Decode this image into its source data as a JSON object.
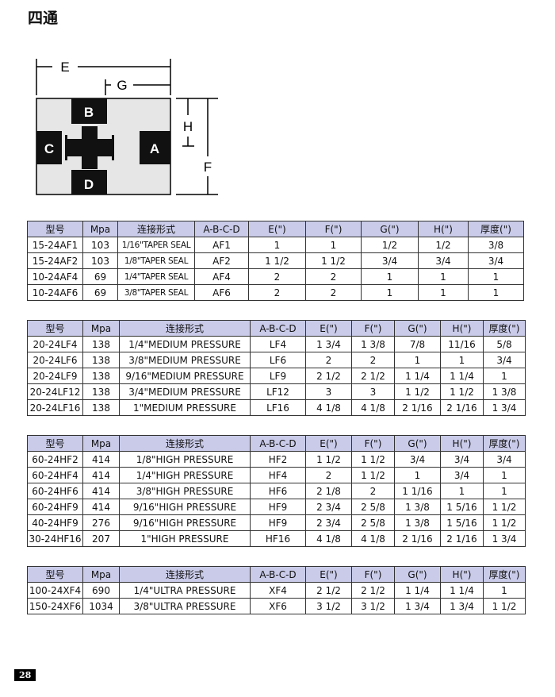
{
  "title": "四通",
  "diagram": {
    "labels": {
      "E": "E",
      "G": "G",
      "H": "H",
      "F": "F",
      "A": "A",
      "B": "B",
      "C": "C",
      "D": "D"
    }
  },
  "headers": [
    "型号",
    "Mpa",
    "连接形式",
    "A-B-C-D",
    "E(\")",
    "F(\")",
    "G(\")",
    "H(\")",
    "厚度(\")"
  ],
  "tables": [
    {
      "rows": [
        [
          "15-24AF1",
          "103",
          "1/16\"TAPER SEAL",
          "AF1",
          "1",
          "1",
          "1/2",
          "1/2",
          "3/8"
        ],
        [
          "15-24AF2",
          "103",
          "1/8\"TAPER SEAL",
          "AF2",
          "1 1/2",
          "1 1/2",
          "3/4",
          "3/4",
          "3/4"
        ],
        [
          "10-24AF4",
          "69",
          "1/4\"TAPER SEAL",
          "AF4",
          "2",
          "2",
          "1",
          "1",
          "1"
        ],
        [
          "10-24AF6",
          "69",
          "3/8\"TAPER SEAL",
          "AF6",
          "2",
          "2",
          "1",
          "1",
          "1"
        ]
      ]
    },
    {
      "rows": [
        [
          "20-24LF4",
          "138",
          "1/4\"MEDIUM PRESSURE",
          "LF4",
          "1 3/4",
          "1 3/8",
          "7/8",
          "11/16",
          "5/8"
        ],
        [
          "20-24LF6",
          "138",
          "3/8\"MEDIUM PRESSURE",
          "LF6",
          "2",
          "2",
          "1",
          "1",
          "3/4"
        ],
        [
          "20-24LF9",
          "138",
          "9/16\"MEDIUM PRESSURE",
          "LF9",
          "2 1/2",
          "2 1/2",
          "1 1/4",
          "1 1/4",
          "1"
        ],
        [
          "20-24LF12",
          "138",
          "3/4\"MEDIUM PRESSURE",
          "LF12",
          "3",
          "3",
          "1 1/2",
          "1 1/2",
          "1 3/8"
        ],
        [
          "20-24LF16",
          "138",
          "1\"MEDIUM PRESSURE",
          "LF16",
          "4 1/8",
          "4 1/8",
          "2 1/16",
          "2 1/16",
          "1 3/4"
        ]
      ]
    },
    {
      "rows": [
        [
          "60-24HF2",
          "414",
          "1/8\"HIGH PRESSURE",
          "HF2",
          "1 1/2",
          "1 1/2",
          "3/4",
          "3/4",
          "3/4"
        ],
        [
          "60-24HF4",
          "414",
          "1/4\"HIGH PRESSURE",
          "HF4",
          "2",
          "1 1/2",
          "1",
          "3/4",
          "1"
        ],
        [
          "60-24HF6",
          "414",
          "3/8\"HIGH PRESSURE",
          "HF6",
          "2 1/8",
          "2",
          "1 1/16",
          "1",
          "1"
        ],
        [
          "60-24HF9",
          "414",
          "9/16\"HIGH PRESSURE",
          "HF9",
          "2 3/4",
          "2 5/8",
          "1 3/8",
          "1 5/16",
          "1 1/2"
        ],
        [
          "40-24HF9",
          "276",
          "9/16\"HIGH PRESSURE",
          "HF9",
          "2 3/4",
          "2 5/8",
          "1 3/8",
          "1 5/16",
          "1 1/2"
        ],
        [
          "30-24HF16",
          "207",
          "1\"HIGH PRESSURE",
          "HF16",
          "4 1/8",
          "4 1/8",
          "2 1/16",
          "2 1/16",
          "1 3/4"
        ]
      ]
    },
    {
      "rows": [
        [
          "100-24XF4",
          "690",
          "1/4\"ULTRA PRESSURE",
          "XF4",
          "2 1/2",
          "2 1/2",
          "1 1/4",
          "1 1/4",
          "1"
        ],
        [
          "150-24XF6",
          "1034",
          "3/8\"ULTRA PRESSURE",
          "XF6",
          "3 1/2",
          "3 1/2",
          "1 3/4",
          "1 3/4",
          "1 1/2"
        ]
      ]
    }
  ],
  "page_number": "28"
}
